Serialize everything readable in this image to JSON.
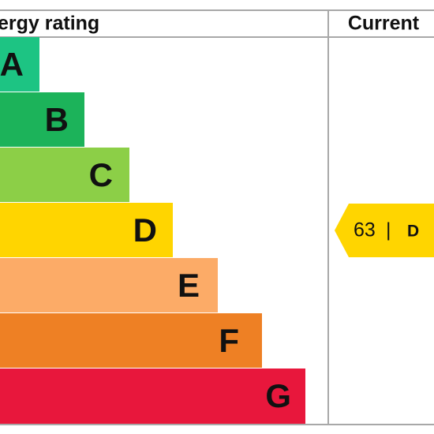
{
  "header": {
    "title": "ergy rating",
    "current": "Current"
  },
  "bands": [
    {
      "label": "A"
    },
    {
      "label": "B"
    },
    {
      "label": "C"
    },
    {
      "label": "D"
    },
    {
      "label": "E"
    },
    {
      "label": "F"
    },
    {
      "label": "G"
    }
  ],
  "current": {
    "score": "63",
    "separator": "|",
    "band": "D"
  }
}
